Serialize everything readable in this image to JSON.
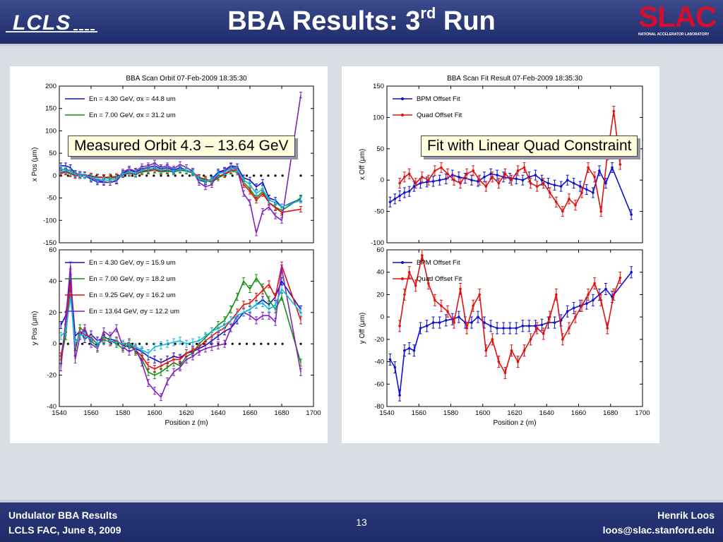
{
  "header": {
    "title_main": "BBA Results: 3",
    "title_sup": "rd",
    "title_end": " Run",
    "logo_left": "LCLS",
    "logo_right": "SLAC",
    "logo_right_sub": "NATIONAL ACCELERATOR LABORATORY"
  },
  "callouts": {
    "left": "Measured Orbit 4.3 – 13.64 GeV",
    "right": "Fit with Linear Quad Constraint"
  },
  "footer": {
    "left_line1": "Undulator BBA Results",
    "left_line2": "LCLS FAC, June 8, 2009",
    "page": "13",
    "right_line1": "Henrik Loos",
    "right_line2": "loos@slac.stanford.edu"
  },
  "colors": {
    "blue": "#1010d0",
    "green": "#109010",
    "red": "#e01010",
    "cyan": "#10b8d8",
    "purple": "#8020c0"
  },
  "chart_data": [
    {
      "type": "line",
      "title": "BBA Scan Orbit 07-Feb-2009 18:35:30",
      "xlabel": "",
      "ylabel": "x Pos  (μm)",
      "xlim": [
        1540,
        1700
      ],
      "ylim": [
        -150,
        200
      ],
      "yticks": [
        -150,
        -100,
        -50,
        0,
        50,
        100,
        150,
        200
      ],
      "xtick_labels_shown": false,
      "legend": [
        "En =   4.30 GeV, σx =   44.8 um",
        "En =   7.00 GeV, σx =   31.2 um"
      ],
      "x": [
        1541,
        1544,
        1547,
        1550,
        1553,
        1556,
        1560,
        1564,
        1568,
        1572,
        1576,
        1580,
        1584,
        1588,
        1592,
        1596,
        1600,
        1604,
        1608,
        1612,
        1616,
        1620,
        1624,
        1628,
        1632,
        1636,
        1640,
        1644,
        1648,
        1652,
        1656,
        1660,
        1664,
        1668,
        1672,
        1676,
        1680,
        1692
      ],
      "series": [
        {
          "color": "blue",
          "values": [
            22,
            22,
            18,
            5,
            2,
            0,
            -8,
            -14,
            -15,
            -15,
            -12,
            5,
            12,
            8,
            15,
            18,
            22,
            15,
            18,
            12,
            18,
            12,
            8,
            -10,
            -14,
            -8,
            8,
            12,
            22,
            20,
            -5,
            -10,
            -25,
            -15,
            -50,
            -55,
            -70,
            -52
          ]
        },
        {
          "color": "green",
          "values": [
            8,
            10,
            6,
            2,
            1,
            0,
            -2,
            -4,
            -5,
            -6,
            -4,
            2,
            5,
            3,
            8,
            10,
            12,
            8,
            10,
            8,
            12,
            10,
            6,
            -5,
            -10,
            -15,
            -5,
            2,
            10,
            8,
            -15,
            -30,
            -50,
            -35,
            -60,
            -70,
            -78,
            -50
          ]
        },
        {
          "color": "red",
          "values": [
            5,
            8,
            4,
            0,
            0,
            2,
            -1,
            -3,
            -4,
            -3,
            -2,
            3,
            6,
            4,
            10,
            12,
            14,
            10,
            12,
            10,
            14,
            12,
            8,
            -4,
            -8,
            -12,
            -2,
            4,
            12,
            12,
            -20,
            -35,
            -55,
            -40,
            -60,
            -72,
            -82,
            -75
          ]
        },
        {
          "color": "purple",
          "values": [
            12,
            15,
            10,
            5,
            3,
            2,
            -5,
            -10,
            -14,
            -15,
            -10,
            8,
            15,
            10,
            20,
            22,
            28,
            18,
            22,
            15,
            25,
            18,
            10,
            -15,
            -25,
            -20,
            5,
            10,
            20,
            15,
            -40,
            -60,
            -128,
            -80,
            -70,
            -90,
            -100,
            180
          ]
        },
        {
          "color": "cyan",
          "values": [
            15,
            12,
            10,
            3,
            1,
            0,
            -4,
            -8,
            -10,
            -10,
            -7,
            4,
            8,
            5,
            12,
            14,
            18,
            12,
            14,
            10,
            15,
            12,
            8,
            -8,
            -12,
            -10,
            4,
            8,
            16,
            14,
            -10,
            -20,
            -40,
            -30,
            -55,
            -60,
            -70,
            -55
          ]
        }
      ],
      "reference_dots_y": 0
    },
    {
      "type": "line",
      "title": "",
      "xlabel": "Position z  (m)",
      "ylabel": "y Pos  (μm)",
      "xlim": [
        1540,
        1700
      ],
      "ylim": [
        -40,
        60
      ],
      "yticks": [
        -40,
        -20,
        0,
        20,
        40,
        60
      ],
      "xticks": [
        1540,
        1560,
        1580,
        1600,
        1620,
        1640,
        1660,
        1680,
        1700
      ],
      "legend": [
        "En =   4.30 GeV, σy =   15.9 um",
        "En =   7.00 GeV, σy =   18.2 um",
        "En =   9.25 GeV, σy =   16.2 um",
        "En =   13.64 GeV, σy =   12.2 um"
      ],
      "x": [
        1541,
        1544,
        1547,
        1550,
        1553,
        1556,
        1560,
        1564,
        1568,
        1572,
        1576,
        1580,
        1584,
        1588,
        1592,
        1596,
        1600,
        1604,
        1608,
        1612,
        1616,
        1620,
        1624,
        1628,
        1632,
        1636,
        1640,
        1644,
        1648,
        1652,
        1656,
        1660,
        1664,
        1668,
        1672,
        1676,
        1680,
        1692
      ],
      "series": [
        {
          "color": "blue",
          "values": [
            12,
            18,
            42,
            5,
            8,
            3,
            6,
            2,
            4,
            3,
            2,
            -1,
            -2,
            -3,
            -5,
            -8,
            -10,
            -12,
            -10,
            -8,
            -9,
            -6,
            -5,
            -3,
            -1,
            2,
            5,
            8,
            10,
            15,
            20,
            22,
            25,
            28,
            25,
            30,
            40,
            22
          ]
        },
        {
          "color": "green",
          "values": [
            -10,
            5,
            35,
            -5,
            10,
            8,
            2,
            -2,
            5,
            2,
            0,
            -3,
            0,
            -5,
            -10,
            -18,
            -20,
            -18,
            -15,
            -12,
            -14,
            -8,
            -6,
            0,
            4,
            8,
            12,
            15,
            22,
            30,
            40,
            35,
            42,
            36,
            28,
            22,
            30,
            -12
          ]
        },
        {
          "color": "red",
          "values": [
            -8,
            10,
            38,
            -2,
            8,
            6,
            4,
            0,
            3,
            1,
            2,
            -1,
            1,
            -4,
            -8,
            -14,
            -16,
            -14,
            -12,
            -10,
            -10,
            -6,
            -4,
            -2,
            2,
            5,
            8,
            10,
            15,
            20,
            25,
            26,
            30,
            34,
            38,
            30,
            50,
            15
          ]
        },
        {
          "color": "purple",
          "values": [
            -15,
            15,
            50,
            -10,
            5,
            10,
            0,
            -3,
            8,
            5,
            10,
            -2,
            -5,
            -3,
            -12,
            -25,
            -30,
            -34,
            -24,
            -18,
            -15,
            -10,
            -8,
            -5,
            -3,
            -2,
            -1,
            0,
            10,
            18,
            20,
            18,
            15,
            18,
            18,
            14,
            48,
            -18
          ]
        },
        {
          "color": "cyan",
          "values": [
            5,
            8,
            30,
            0,
            6,
            5,
            3,
            0,
            2,
            2,
            1,
            0,
            0,
            -2,
            -4,
            -6,
            -2,
            -1,
            0,
            1,
            2,
            0,
            1,
            2,
            5,
            8,
            10,
            12,
            15,
            18,
            20,
            22,
            25,
            26,
            22,
            25,
            35,
            20
          ]
        }
      ],
      "reference_dots_y": 0
    },
    {
      "type": "line",
      "title": "BBA Scan Fit Result 07-Feb-2009 18:35:30",
      "xlabel": "",
      "ylabel": "x Off  (μm)",
      "xlim": [
        1540,
        1700
      ],
      "ylim": [
        -100,
        150
      ],
      "yticks": [
        -100,
        -50,
        0,
        50,
        100,
        150
      ],
      "xtick_labels_shown": false,
      "legend": [
        "BPM Offset Fit",
        "Quad Offset Fit"
      ],
      "series": [
        {
          "name": "BPM Offset Fit",
          "color": "blue",
          "x": [
            1542,
            1545,
            1548,
            1551,
            1554,
            1557,
            1561,
            1565,
            1569,
            1573,
            1577,
            1581,
            1585,
            1589,
            1593,
            1597,
            1601,
            1605,
            1609,
            1613,
            1617,
            1621,
            1625,
            1629,
            1633,
            1637,
            1641,
            1645,
            1649,
            1653,
            1657,
            1661,
            1665,
            1669,
            1673,
            1677,
            1681,
            1693
          ],
          "values": [
            -35,
            -30,
            -25,
            -20,
            -18,
            -10,
            -5,
            -3,
            -2,
            0,
            2,
            8,
            5,
            3,
            0,
            -2,
            5,
            10,
            8,
            5,
            3,
            2,
            0,
            5,
            8,
            0,
            -5,
            -8,
            -10,
            0,
            -5,
            -10,
            -15,
            -20,
            15,
            -5,
            20,
            -55
          ]
        },
        {
          "name": "Quad Offset Fit",
          "color": "red",
          "x": [
            1548,
            1551,
            1554,
            1558,
            1562,
            1566,
            1570,
            1574,
            1578,
            1582,
            1586,
            1590,
            1594,
            1598,
            1602,
            1606,
            1610,
            1614,
            1618,
            1622,
            1626,
            1630,
            1634,
            1638,
            1642,
            1646,
            1650,
            1654,
            1658,
            1662,
            1666,
            1670,
            1674,
            1678,
            1682,
            1686
          ],
          "values": [
            -5,
            5,
            10,
            -5,
            5,
            0,
            15,
            20,
            10,
            0,
            -5,
            10,
            15,
            0,
            -10,
            5,
            -5,
            10,
            0,
            15,
            20,
            -5,
            -10,
            -5,
            -20,
            -35,
            -50,
            -30,
            -40,
            -20,
            20,
            5,
            -50,
            40,
            110,
            25
          ]
        }
      ]
    },
    {
      "type": "line",
      "title": "",
      "xlabel": "Position z  (m)",
      "ylabel": "y Off  (μm)",
      "xlim": [
        1540,
        1700
      ],
      "ylim": [
        -80,
        60
      ],
      "yticks": [
        -80,
        -60,
        -40,
        -20,
        0,
        20,
        40,
        60
      ],
      "xticks": [
        1540,
        1560,
        1580,
        1600,
        1620,
        1640,
        1660,
        1680,
        1700
      ],
      "legend": [
        "BPM Offset Fit",
        "Quad Offset Fit"
      ],
      "series": [
        {
          "name": "BPM Offset Fit",
          "color": "blue",
          "x": [
            1542,
            1545,
            1548,
            1551,
            1554,
            1557,
            1561,
            1565,
            1569,
            1573,
            1577,
            1581,
            1585,
            1589,
            1593,
            1597,
            1601,
            1605,
            1609,
            1613,
            1617,
            1621,
            1625,
            1629,
            1633,
            1637,
            1641,
            1645,
            1649,
            1653,
            1657,
            1661,
            1665,
            1669,
            1673,
            1677,
            1681,
            1693
          ],
          "values": [
            -38,
            -45,
            -70,
            -30,
            -28,
            -30,
            -10,
            -8,
            -5,
            -5,
            -3,
            -2,
            0,
            -5,
            -5,
            0,
            -5,
            -8,
            -10,
            -10,
            -10,
            -10,
            -8,
            -8,
            -8,
            -7,
            -5,
            -5,
            -3,
            5,
            8,
            10,
            12,
            15,
            20,
            25,
            18,
            40
          ]
        },
        {
          "name": "Quad Offset Fit",
          "color": "red",
          "x": [
            1548,
            1551,
            1554,
            1558,
            1562,
            1566,
            1570,
            1574,
            1578,
            1582,
            1586,
            1590,
            1594,
            1598,
            1602,
            1606,
            1610,
            1614,
            1618,
            1622,
            1626,
            1630,
            1634,
            1638,
            1642,
            1646,
            1650,
            1654,
            1658,
            1662,
            1666,
            1670,
            1674,
            1678,
            1682,
            1686
          ],
          "values": [
            -8,
            20,
            40,
            28,
            55,
            30,
            15,
            10,
            5,
            -5,
            25,
            -10,
            10,
            20,
            -30,
            -20,
            -40,
            -50,
            -30,
            -40,
            -30,
            -20,
            -10,
            -15,
            0,
            20,
            -20,
            -10,
            0,
            10,
            20,
            30,
            15,
            -10,
            20,
            35
          ]
        }
      ]
    }
  ]
}
